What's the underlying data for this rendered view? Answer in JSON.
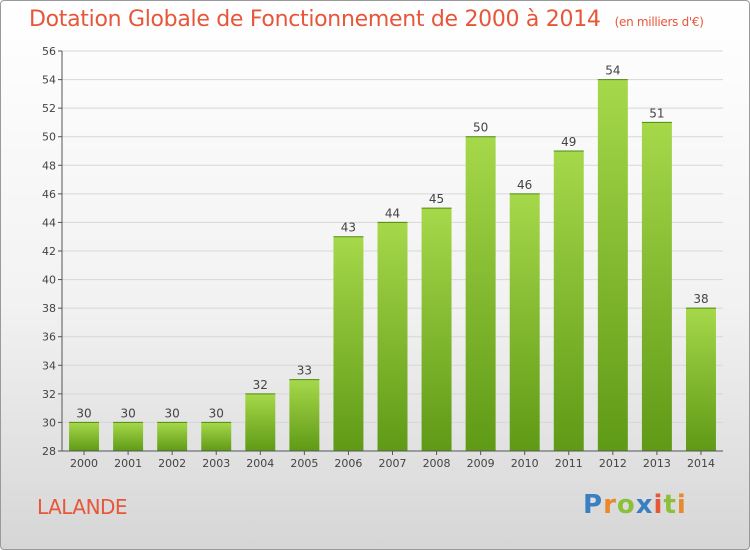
{
  "title": "Dotation Globale de Fonctionnement de 2000 à 2014",
  "subtitle": "(en milliers d'€)",
  "footer_name": "LALANDE",
  "logo": {
    "text": "Proxiti",
    "letters": [
      {
        "ch": "P",
        "color": "#3a7fc1"
      },
      {
        "ch": "r",
        "color": "#e8892b"
      },
      {
        "ch": "o",
        "color": "#8cbf3a"
      },
      {
        "ch": "x",
        "color": "#3a7fc1"
      },
      {
        "ch": "i",
        "color": "#e8563a"
      },
      {
        "ch": "t",
        "color": "#8cbf3a"
      },
      {
        "ch": "i",
        "color": "#e8892b"
      }
    ]
  },
  "colors": {
    "title": "#e8563a",
    "bar_top": "#a6d84a",
    "bar_bottom": "#5f9a16",
    "grid": "#d7d7d7",
    "axis": "#555555"
  },
  "chart_data": {
    "type": "bar",
    "categories": [
      "2000",
      "2001",
      "2002",
      "2003",
      "2004",
      "2005",
      "2006",
      "2007",
      "2008",
      "2009",
      "2010",
      "2011",
      "2012",
      "2013",
      "2014"
    ],
    "values": [
      30,
      30,
      30,
      30,
      32,
      33,
      43,
      44,
      45,
      50,
      46,
      49,
      54,
      51,
      38
    ],
    "title": "Dotation Globale de Fonctionnement de 2000 à 2014",
    "ylim": [
      28,
      56
    ],
    "yticks": [
      28,
      30,
      32,
      34,
      36,
      38,
      40,
      42,
      44,
      46,
      48,
      50,
      52,
      54,
      56
    ],
    "grid": true,
    "legend": "none"
  }
}
